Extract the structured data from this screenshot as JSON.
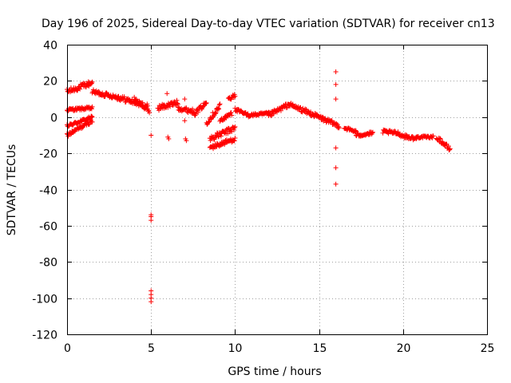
{
  "chart_data": {
    "type": "scatter",
    "title": "Day 196 of 2025, Sidereal Day-to-day VTEC variation (SDTVAR) for receiver cn13",
    "xlabel": "GPS time / hours",
    "ylabel": "SDTVAR / TECUs",
    "xlim": [
      0,
      25
    ],
    "ylim": [
      -120,
      40
    ],
    "xticks": [
      "0",
      "5",
      "10",
      "15",
      "20",
      "25"
    ],
    "yticks": [
      "40",
      "20",
      "0",
      "-20",
      "-40",
      "-60",
      "-80",
      "-100",
      "-120"
    ],
    "grid": true,
    "marker": "+",
    "series": [
      {
        "name": "cn13",
        "color": "#ff0000",
        "bands": [
          {
            "x": [
              0.0,
              1.5
            ],
            "y": [
              14,
              19
            ],
            "spread": 3
          },
          {
            "x": [
              0.0,
              1.5
            ],
            "y": [
              4,
              5
            ],
            "spread": 1.5
          },
          {
            "x": [
              0.0,
              1.5
            ],
            "y": [
              -5,
              0
            ],
            "spread": 1.5
          },
          {
            "x": [
              0.0,
              1.5
            ],
            "y": [
              -10,
              -2
            ],
            "spread": 2
          },
          {
            "x": [
              1.5,
              3.0
            ],
            "y": [
              14,
              11
            ],
            "spread": 2.5
          },
          {
            "x": [
              3.0,
              4.8
            ],
            "y": [
              11,
              6
            ],
            "spread": 3
          },
          {
            "x": [
              4.0,
              4.9
            ],
            "y": [
              10,
              3
            ],
            "spread": 2
          },
          {
            "x": [
              5.4,
              6.6
            ],
            "y": [
              5,
              8
            ],
            "spread": 3
          },
          {
            "x": [
              6.6,
              7.6
            ],
            "y": [
              5,
              3
            ],
            "spread": 2.5
          },
          {
            "x": [
              7.6,
              8.3
            ],
            "y": [
              2,
              8
            ],
            "spread": 2.5
          },
          {
            "x": [
              8.3,
              9.1
            ],
            "y": [
              -3,
              6
            ],
            "spread": 3
          },
          {
            "x": [
              9.1,
              9.8
            ],
            "y": [
              -2,
              2
            ],
            "spread": 2
          },
          {
            "x": [
              9.6,
              10.0
            ],
            "y": [
              10,
              12
            ],
            "spread": 2
          },
          {
            "x": [
              8.5,
              10.0
            ],
            "y": [
              -12,
              -6
            ],
            "spread": 3
          },
          {
            "x": [
              8.5,
              10.0
            ],
            "y": [
              -17,
              -12
            ],
            "spread": 2.5
          },
          {
            "x": [
              10.0,
              10.8
            ],
            "y": [
              4,
              1
            ],
            "spread": 2
          },
          {
            "x": [
              10.8,
              12.0
            ],
            "y": [
              1,
              2
            ],
            "spread": 1.5
          },
          {
            "x": [
              12.0,
              13.2
            ],
            "y": [
              1,
              7
            ],
            "spread": 2.5
          },
          {
            "x": [
              13.2,
              14.5
            ],
            "y": [
              7,
              2
            ],
            "spread": 2.5
          },
          {
            "x": [
              14.5,
              16.2
            ],
            "y": [
              2,
              -5
            ],
            "spread": 2.5
          },
          {
            "x": [
              16.5,
              17.2
            ],
            "y": [
              -6,
              -8
            ],
            "spread": 1.5
          },
          {
            "x": [
              17.2,
              18.2
            ],
            "y": [
              -10,
              -9
            ],
            "spread": 2
          },
          {
            "x": [
              18.8,
              19.8
            ],
            "y": [
              -8,
              -9
            ],
            "spread": 2
          },
          {
            "x": [
              19.8,
              20.8
            ],
            "y": [
              -10,
              -12
            ],
            "spread": 2
          },
          {
            "x": [
              20.8,
              21.8
            ],
            "y": [
              -11,
              -11
            ],
            "spread": 1.2
          },
          {
            "x": [
              22.0,
              22.8
            ],
            "y": [
              -11,
              -18
            ],
            "spread": 2.5
          }
        ],
        "points": [
          [
            5.0,
            -10
          ],
          [
            5.0,
            -54
          ],
          [
            5.0,
            -55
          ],
          [
            5.0,
            -57
          ],
          [
            5.0,
            -96
          ],
          [
            5.0,
            -98
          ],
          [
            5.0,
            -100
          ],
          [
            5.0,
            -102
          ],
          [
            6.0,
            -11
          ],
          [
            6.05,
            -12
          ],
          [
            7.0,
            -2
          ],
          [
            7.05,
            -12
          ],
          [
            7.1,
            -13
          ],
          [
            5.95,
            13
          ],
          [
            7.0,
            10
          ],
          [
            16.0,
            25
          ],
          [
            16.0,
            18
          ],
          [
            16.0,
            10
          ],
          [
            16.0,
            -17
          ],
          [
            16.0,
            -28
          ],
          [
            16.0,
            -37
          ]
        ]
      }
    ]
  }
}
